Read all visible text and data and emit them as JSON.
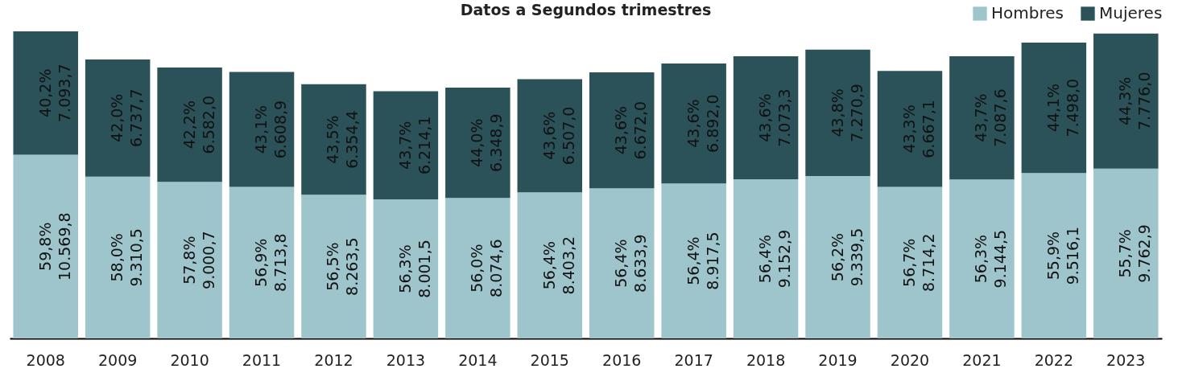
{
  "chart_data": {
    "type": "bar",
    "title": "Datos a Segundos trimestres",
    "stacked": true,
    "legend": "top right",
    "categories": [
      "2008",
      "2009",
      "2010",
      "2011",
      "2012",
      "2013",
      "2014",
      "2015",
      "2016",
      "2017",
      "2018",
      "2019",
      "2020",
      "2021",
      "2022",
      "2023"
    ],
    "series": [
      {
        "name": "Hombres",
        "color": "#9ec5cc",
        "values": [
          10569.8,
          9310.5,
          9000.7,
          8713.8,
          8263.5,
          8001.5,
          8074.6,
          8403.2,
          8633.9,
          8917.5,
          9152.9,
          9339.5,
          8714.2,
          9144.5,
          9516.1,
          9762.9
        ],
        "value_labels": [
          "59,8%\n10.569,8",
          "58,0%\n9.310,5",
          "57,8%\n9.000,7",
          "56,9%\n8.713,8",
          "56,5%\n8.263,5",
          "56,3%\n8.001,5",
          "56,0%\n8.074,6",
          "56,4%\n8.403,2",
          "56,4%\n8.633,9",
          "56,4%\n8.917,5",
          "56,4%\n9.152,9",
          "56,2%\n9.339,5",
          "56,7%\n8.714,2",
          "56,3%\n9.144,5",
          "55,9%\n9.516,1",
          "55,7%\n9.762,9"
        ]
      },
      {
        "name": "Mujeres",
        "color": "#2b5159",
        "values": [
          7093.7,
          6737.7,
          6582.0,
          6608.9,
          6354.4,
          6214.1,
          6348.9,
          6507.0,
          6672.0,
          6892.0,
          7073.3,
          7270.9,
          6667.1,
          7087.6,
          7498.0,
          7776.0
        ],
        "value_labels": [
          "40,2%\n7.093,7",
          "42,0%\n6.737,7",
          "42,2%\n6.582,0",
          "43,1%\n6.608,9",
          "43,5%\n6.354,4",
          "43,7%\n6.214,1",
          "44,0%\n6.348,9",
          "43,6%\n6.507,0",
          "43,6%\n6.672,0",
          "43,6%\n6.892,0",
          "43,6%\n7.073,3",
          "43,8%\n7.270,9",
          "43,3%\n6.667,1",
          "43,7%\n7.087,6",
          "44,1%\n7.498,0",
          "44,3%\n7.776,0"
        ]
      }
    ]
  }
}
